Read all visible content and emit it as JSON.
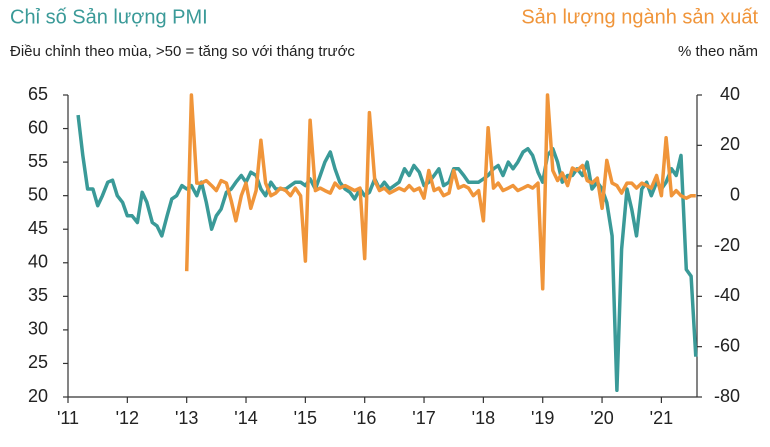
{
  "chart_data": {
    "type": "line",
    "title": "Chỉ số Sản lượng PMI",
    "subtitle": "Điều chỉnh theo mùa, >50 = tăng so với tháng trước",
    "y2_title": "Sản lượng ngành sản xuất",
    "y2_subtitle": "% theo năm",
    "x": [
      2011.17,
      2011.25,
      2011.33,
      2011.42,
      2011.5,
      2011.58,
      2011.67,
      2011.75,
      2011.83,
      2011.92,
      2012,
      2012.08,
      2012.17,
      2012.25,
      2012.33,
      2012.42,
      2012.5,
      2012.58,
      2012.67,
      2012.75,
      2012.83,
      2012.92,
      2013,
      2013.08,
      2013.17,
      2013.25,
      2013.33,
      2013.42,
      2013.5,
      2013.58,
      2013.67,
      2013.75,
      2013.83,
      2013.92,
      2014,
      2014.08,
      2014.17,
      2014.25,
      2014.33,
      2014.42,
      2014.5,
      2014.58,
      2014.67,
      2014.75,
      2014.83,
      2014.92,
      2015,
      2015.08,
      2015.17,
      2015.25,
      2015.33,
      2015.42,
      2015.5,
      2015.58,
      2015.67,
      2015.75,
      2015.83,
      2015.92,
      2016,
      2016.08,
      2016.17,
      2016.25,
      2016.33,
      2016.42,
      2016.5,
      2016.58,
      2016.67,
      2016.75,
      2016.83,
      2016.92,
      2017,
      2017.08,
      2017.17,
      2017.25,
      2017.33,
      2017.42,
      2017.5,
      2017.58,
      2017.67,
      2017.75,
      2017.83,
      2017.92,
      2018,
      2018.08,
      2018.17,
      2018.25,
      2018.33,
      2018.42,
      2018.5,
      2018.58,
      2018.67,
      2018.75,
      2018.83,
      2018.92,
      2019,
      2019.08,
      2019.17,
      2019.25,
      2019.33,
      2019.42,
      2019.5,
      2019.58,
      2019.67,
      2019.75,
      2019.83,
      2019.92,
      2020,
      2020.08,
      2020.17,
      2020.25,
      2020.33,
      2020.42,
      2020.5,
      2020.58,
      2020.67,
      2020.75,
      2020.83,
      2020.92,
      2021,
      2021.08,
      2021.17,
      2021.25,
      2021.33,
      2021.42,
      2021.5,
      2021.58
    ],
    "series": [
      {
        "name": "Chỉ số Sản lượng PMI",
        "color": "#3a9a98",
        "axis": "y",
        "values": [
          62,
          56,
          51,
          51,
          48.5,
          50,
          52,
          52.3,
          50,
          49,
          47,
          47,
          46,
          50.5,
          49,
          46,
          45.5,
          44,
          47,
          49.5,
          50,
          51.5,
          51,
          51.5,
          50,
          52,
          49,
          45,
          47,
          48,
          50.5,
          51,
          52,
          53,
          52,
          53.5,
          53,
          51,
          50,
          52,
          51,
          51,
          51,
          51.5,
          52,
          52,
          51.5,
          52.5,
          51,
          53,
          55,
          56.5,
          54,
          52,
          51,
          50.5,
          49.5,
          51,
          50,
          50.5,
          52.5,
          51,
          52,
          51,
          51.5,
          52,
          54,
          53,
          54.5,
          53.5,
          51.5,
          52,
          53,
          54,
          51.5,
          52,
          54,
          54,
          53,
          52,
          52,
          52,
          52.5,
          53,
          54,
          54.5,
          53,
          55,
          54,
          55,
          56.5,
          57,
          56,
          53.5,
          52,
          56,
          57,
          55,
          52,
          53,
          53,
          54,
          53,
          55,
          51,
          52,
          51,
          49,
          44,
          21,
          42,
          51,
          48,
          44,
          51,
          52,
          50,
          52,
          51,
          52,
          54,
          53,
          56,
          39,
          38,
          26
        ]
      },
      {
        "name": "Sản lượng ngành sản xuất",
        "color": "#f0953a",
        "axis": "y2",
        "values": [
          null,
          null,
          null,
          null,
          null,
          null,
          null,
          null,
          null,
          null,
          null,
          null,
          null,
          null,
          null,
          null,
          null,
          null,
          null,
          null,
          null,
          null,
          -30,
          40,
          5,
          5,
          6,
          4,
          2,
          6,
          5,
          -2,
          -10,
          0,
          5,
          -5,
          2,
          22,
          5,
          0,
          1,
          3,
          2,
          0,
          3,
          0,
          -26,
          30,
          2,
          3,
          2,
          1,
          5,
          3,
          4,
          3,
          2,
          3,
          -25,
          33,
          6,
          2,
          3,
          1,
          2,
          3,
          2,
          4,
          2,
          3,
          -1,
          10,
          2,
          3,
          0,
          1,
          10,
          3,
          4,
          3,
          0,
          2,
          -10,
          27,
          3,
          5,
          2,
          3,
          4,
          2,
          3,
          4,
          3,
          5,
          -37,
          40,
          10,
          6,
          9,
          4,
          11,
          10,
          12,
          6,
          5,
          7,
          -5,
          14,
          5,
          4,
          1,
          5,
          5,
          3,
          5,
          4,
          3,
          8,
          0,
          23,
          0,
          2,
          0,
          -1,
          0,
          0
        ]
      }
    ],
    "xlim": [
      2011,
      2021.6
    ],
    "xticks": [
      {
        "value": 2011,
        "label": "'11"
      },
      {
        "value": 2012,
        "label": "'12"
      },
      {
        "value": 2013,
        "label": "'13"
      },
      {
        "value": 2014,
        "label": "'14"
      },
      {
        "value": 2015,
        "label": "'15"
      },
      {
        "value": 2016,
        "label": "'16"
      },
      {
        "value": 2017,
        "label": "'17"
      },
      {
        "value": 2018,
        "label": "'18"
      },
      {
        "value": 2019,
        "label": "'19"
      },
      {
        "value": 2020,
        "label": "'20"
      },
      {
        "value": 2021,
        "label": "'21"
      }
    ],
    "ylim": [
      20,
      65
    ],
    "yticks": [
      65,
      60,
      55,
      50,
      45,
      40,
      35,
      30,
      25,
      20
    ],
    "y2lim": [
      -80,
      40
    ],
    "y2ticks": [
      40,
      20,
      0,
      -20,
      -40,
      -60,
      -80
    ],
    "grid": false
  }
}
